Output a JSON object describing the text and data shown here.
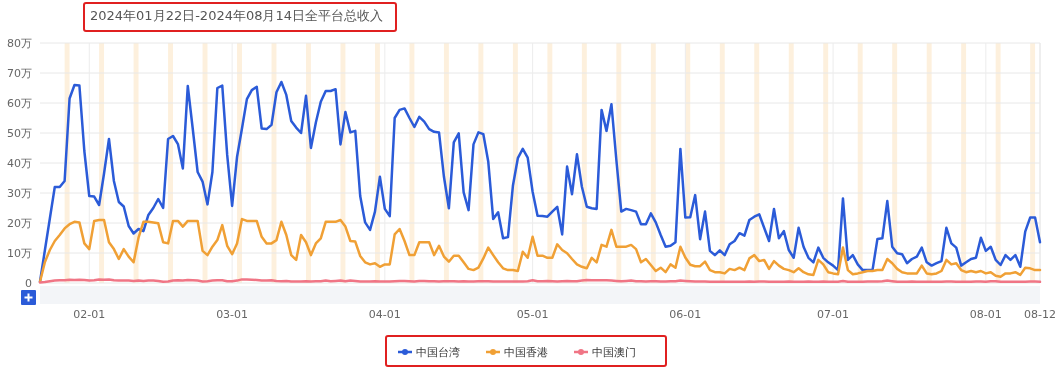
{
  "chart_data": {
    "type": "line",
    "title": "2024年01月22日-2024年08月14日全平台总收入",
    "x": [
      "2024-01-22",
      "2024-01-23",
      "2024-01-24",
      "2024-01-25",
      "2024-01-26",
      "2024-01-27",
      "2024-01-28",
      "2024-01-29",
      "2024-01-30",
      "2024-01-31",
      "2024-02-01",
      "2024-02-02",
      "2024-02-03",
      "2024-02-04",
      "2024-02-05",
      "2024-02-06",
      "2024-02-07",
      "2024-02-08",
      "2024-02-09",
      "2024-02-10",
      "2024-02-11",
      "2024-02-12",
      "2024-02-13",
      "2024-02-14",
      "2024-02-15",
      "2024-02-16",
      "2024-02-17",
      "2024-02-18",
      "2024-02-19",
      "2024-02-20",
      "2024-02-21",
      "2024-02-22",
      "2024-02-23",
      "2024-02-24",
      "2024-02-25",
      "2024-02-26",
      "2024-02-27",
      "2024-02-28",
      "2024-02-29",
      "2024-03-01",
      "2024-03-02",
      "2024-03-03",
      "2024-03-04",
      "2024-03-05",
      "2024-03-06",
      "2024-03-07",
      "2024-03-08",
      "2024-03-09",
      "2024-03-10",
      "2024-03-11",
      "2024-03-12",
      "2024-03-13",
      "2024-03-14",
      "2024-03-15",
      "2024-03-16",
      "2024-03-17",
      "2024-03-18",
      "2024-03-19",
      "2024-03-20",
      "2024-03-21",
      "2024-03-22",
      "2024-03-23",
      "2024-03-24",
      "2024-03-25",
      "2024-03-26",
      "2024-03-27",
      "2024-03-28",
      "2024-03-29",
      "2024-03-30",
      "2024-03-31",
      "2024-04-01",
      "2024-04-02",
      "2024-04-03",
      "2024-04-04",
      "2024-04-05",
      "2024-04-06",
      "2024-04-07",
      "2024-04-08",
      "2024-04-09",
      "2024-04-10",
      "2024-04-11",
      "2024-04-12",
      "2024-04-13",
      "2024-04-14",
      "2024-04-15",
      "2024-04-16",
      "2024-04-17",
      "2024-04-18",
      "2024-04-19",
      "2024-04-20",
      "2024-04-21",
      "2024-04-22",
      "2024-04-23",
      "2024-04-24",
      "2024-04-25",
      "2024-04-26",
      "2024-04-27",
      "2024-04-28",
      "2024-04-29",
      "2024-04-30",
      "2024-05-01",
      "2024-05-02",
      "2024-05-03",
      "2024-05-04",
      "2024-05-05",
      "2024-05-06",
      "2024-05-07",
      "2024-05-08",
      "2024-05-09",
      "2024-05-10",
      "2024-05-11",
      "2024-05-12",
      "2024-05-13",
      "2024-05-14",
      "2024-05-15",
      "2024-05-16",
      "2024-05-17",
      "2024-05-18",
      "2024-05-19",
      "2024-05-20",
      "2024-05-21",
      "2024-05-22",
      "2024-05-23",
      "2024-05-24",
      "2024-05-25",
      "2024-05-26",
      "2024-05-27",
      "2024-05-28",
      "2024-05-29",
      "2024-05-30",
      "2024-05-31",
      "2024-06-01",
      "2024-06-02",
      "2024-06-03",
      "2024-06-04",
      "2024-06-05",
      "2024-06-06",
      "2024-06-07",
      "2024-06-08",
      "2024-06-09",
      "2024-06-10",
      "2024-06-11",
      "2024-06-12",
      "2024-06-13",
      "2024-06-14",
      "2024-06-15",
      "2024-06-16",
      "2024-06-17",
      "2024-06-18",
      "2024-06-19",
      "2024-06-20",
      "2024-06-21",
      "2024-06-22",
      "2024-06-23",
      "2024-06-24",
      "2024-06-25",
      "2024-06-26",
      "2024-06-27",
      "2024-06-28",
      "2024-06-29",
      "2024-06-30",
      "2024-07-01",
      "2024-07-02",
      "2024-07-03",
      "2024-07-04",
      "2024-07-05",
      "2024-07-06",
      "2024-07-07",
      "2024-07-08",
      "2024-07-09",
      "2024-07-10",
      "2024-07-11",
      "2024-07-12",
      "2024-07-13",
      "2024-07-14",
      "2024-07-15",
      "2024-07-16",
      "2024-07-17",
      "2024-07-18",
      "2024-07-19",
      "2024-07-20",
      "2024-07-21",
      "2024-07-22",
      "2024-07-23",
      "2024-07-24",
      "2024-07-25",
      "2024-07-26",
      "2024-07-27",
      "2024-07-28",
      "2024-07-29",
      "2024-07-30",
      "2024-07-31",
      "2024-08-01",
      "2024-08-02",
      "2024-08-03",
      "2024-08-04",
      "2024-08-05",
      "2024-08-06",
      "2024-08-07",
      "2024-08-08",
      "2024-08-09",
      "2024-08-10",
      "2024-08-11",
      "2024-08-12"
    ],
    "series": [
      {
        "name": "中国台湾",
        "color": "#2b5bd8",
        "values": [
          0.4,
          11,
          21.5,
          32,
          32,
          34,
          61.5,
          66,
          65.8,
          44,
          29,
          28.8,
          26,
          36.5,
          48,
          34,
          27,
          25.5,
          19,
          16.5,
          18,
          17.3,
          22.7,
          25,
          28,
          25,
          48,
          49,
          46.3,
          38.2,
          65.7,
          51.5,
          37,
          33.8,
          26.2,
          37,
          65,
          65.8,
          42.7,
          25.7,
          42,
          51.5,
          61.3,
          64.3,
          65.4,
          51.5,
          51.3,
          52.7,
          63.6,
          67,
          62.7,
          54,
          51.8,
          50,
          62.4,
          45,
          53.5,
          60.4,
          64,
          64,
          64.6,
          46.2,
          57,
          50.2,
          50.7,
          29,
          20.2,
          17.7,
          23.8,
          35.4,
          24.7,
          22.3,
          55,
          57.7,
          58.2,
          55,
          52,
          55.4,
          53.8,
          51.3,
          50.4,
          50.2,
          35.4,
          24.9,
          46.9,
          49.9,
          30.2,
          24.3,
          46.2,
          50.2,
          49.6,
          40.4,
          21.3,
          23.6,
          14.9,
          15.3,
          32.4,
          41.6,
          44.7,
          41.8,
          30.4,
          22.4,
          22.3,
          22.1,
          23.8,
          25.4,
          16.2,
          38.8,
          29.6,
          42.9,
          32.1,
          25.4,
          24.9,
          24.7,
          57.7,
          50.7,
          59.6,
          41,
          23.8,
          24.7,
          24.3,
          23.8,
          19.6,
          19.6,
          23.2,
          20.2,
          16,
          12.1,
          12.4,
          13.6,
          44.7,
          21.8,
          21.9,
          29.3,
          14.6,
          23.8,
          10.7,
          9.3,
          10.9,
          9.3,
          12.9,
          14,
          16.6,
          15.8,
          21,
          22.1,
          22.9,
          18.4,
          14,
          24.7,
          14.9,
          17.3,
          11,
          8.4,
          18.4,
          12.1,
          8.4,
          6.9,
          11.8,
          8.4,
          6.9,
          5.8,
          4.3,
          28.2,
          7.7,
          9.3,
          6.2,
          4.3,
          4.3,
          4.3,
          14.7,
          14.9,
          27.3,
          12.1,
          9.9,
          9.6,
          6.6,
          8,
          8.8,
          11.8,
          6.9,
          5.8,
          6.6,
          7.3,
          18.4,
          13.2,
          11.8,
          5.8,
          6.9,
          8,
          8.4,
          15.1,
          10.7,
          12.1,
          7.7,
          6,
          9.3,
          7.7,
          9.3,
          5.4,
          17.1,
          21.8,
          21.8,
          13.6
        ]
      },
      {
        "name": "中国香港",
        "color": "#f0a035",
        "values": [
          0.4,
          7,
          11,
          14,
          16,
          18.2,
          19.6,
          20.4,
          20.2,
          13.2,
          11.3,
          20.7,
          21,
          21,
          13.6,
          11.3,
          8,
          11.3,
          8.8,
          6.9,
          15.1,
          20.4,
          20.4,
          20.2,
          19.9,
          13.6,
          13.2,
          20.7,
          20.7,
          18.8,
          20.7,
          20.7,
          20.7,
          10.7,
          9.3,
          12.1,
          14.3,
          19.3,
          12.4,
          9.6,
          13.2,
          21.3,
          20.7,
          20.7,
          20.7,
          15.4,
          13.2,
          13.2,
          14.3,
          20.4,
          16,
          9.3,
          7.7,
          16,
          13.6,
          9.3,
          13.2,
          14.9,
          20.4,
          20.4,
          20.4,
          21,
          18.8,
          14,
          13.8,
          9,
          6.9,
          6.2,
          6.6,
          5.4,
          6.2,
          6.2,
          16.2,
          18,
          14,
          9.3,
          9.3,
          13.6,
          13.6,
          13.6,
          9.3,
          12.4,
          8.8,
          7.1,
          9.1,
          9.1,
          6.9,
          4.7,
          4.3,
          5.1,
          8.2,
          11.8,
          9.3,
          6.9,
          4.9,
          4.3,
          4.3,
          4,
          10.4,
          8.4,
          15.4,
          9.1,
          9.1,
          8.4,
          8.4,
          12.9,
          11,
          9.9,
          8,
          6.2,
          5.4,
          4.9,
          8.4,
          6.9,
          12.7,
          12.1,
          17.7,
          12.1,
          12.1,
          12.1,
          12.7,
          11.3,
          6.9,
          8,
          6,
          4,
          5.1,
          3.6,
          6.2,
          5.1,
          12.1,
          8.5,
          6.1,
          5.6,
          5.6,
          7.1,
          4.3,
          3.6,
          3.6,
          3.2,
          4.7,
          4.3,
          5.1,
          4.3,
          8.2,
          9.3,
          7.3,
          7.7,
          4.7,
          7.3,
          5.8,
          4.7,
          4.3,
          3.6,
          4.9,
          3.6,
          2.9,
          2.7,
          7.7,
          6.2,
          3.6,
          3.2,
          2.9,
          11.8,
          4.3,
          2.9,
          3.2,
          3.6,
          4,
          4,
          4.3,
          4.3,
          8,
          6.6,
          4.7,
          3.6,
          3.2,
          3.2,
          3.2,
          5.8,
          3.2,
          2.9,
          3.2,
          4,
          7.7,
          6.2,
          6.6,
          4.3,
          3.6,
          4,
          3.6,
          4,
          3.2,
          3.6,
          2.4,
          2.1,
          3.2,
          3.2,
          3.6,
          2.7,
          5.1,
          4.9,
          4.3,
          4.3
        ]
      },
      {
        "name": "中国澳门",
        "color": "#f07585",
        "values": [
          0.2,
          0.3,
          0.6,
          0.8,
          0.9,
          0.9,
          1.1,
          1,
          1.1,
          1,
          0.8,
          0.9,
          1.2,
          1.1,
          1.2,
          0.9,
          0.8,
          0.8,
          0.8,
          0.7,
          0.8,
          0.7,
          0.8,
          0.8,
          0.7,
          0.4,
          0.5,
          0.8,
          0.9,
          0.8,
          1,
          0.9,
          0.8,
          0.5,
          0.6,
          0.8,
          0.9,
          0.9,
          0.6,
          0.6,
          0.8,
          1.2,
          1.2,
          1.1,
          1,
          0.8,
          0.8,
          0.9,
          0.7,
          0.6,
          0.7,
          0.5,
          0.5,
          0.5,
          0.6,
          0.5,
          0.6,
          0.6,
          0.8,
          0.6,
          0.7,
          0.8,
          0.6,
          0.8,
          0.7,
          0.5,
          0.5,
          0.5,
          0.6,
          0.5,
          0.5,
          0.5,
          0.6,
          0.7,
          0.7,
          0.6,
          0.5,
          0.7,
          0.7,
          0.6,
          0.6,
          0.5,
          0.6,
          0.6,
          0.6,
          0.5,
          0.6,
          0.5,
          0.5,
          0.6,
          0.6,
          0.6,
          0.5,
          0.5,
          0.5,
          0.5,
          0.5,
          0.5,
          0.5,
          0.6,
          0.9,
          0.6,
          0.6,
          0.7,
          0.6,
          0.5,
          0.6,
          0.7,
          0.6,
          0.6,
          0.8,
          1,
          0.9,
          0.9,
          0.9,
          0.9,
          0.8,
          0.7,
          0.6,
          0.7,
          0.8,
          0.6,
          0.6,
          0.5,
          0.6,
          0.6,
          0.5,
          0.5,
          0.6,
          0.6,
          0.8,
          0.7,
          0.6,
          0.5,
          0.5,
          0.5,
          0.4,
          0.4,
          0.4,
          0.4,
          0.4,
          0.4,
          0.4,
          0.4,
          0.5,
          0.4,
          0.5,
          0.5,
          0.4,
          0.4,
          0.4,
          0.4,
          0.5,
          0.4,
          0.4,
          0.4,
          0.5,
          0.4,
          0.4,
          0.5,
          0.4,
          0.4,
          0.4,
          0.7,
          0.4,
          0.4,
          0.4,
          0.4,
          0.5,
          0.5,
          0.5,
          0.6,
          0.8,
          0.6,
          0.4,
          0.4,
          0.4,
          0.5,
          0.4,
          0.4,
          0.4,
          0.4,
          0.4,
          0.4,
          0.5,
          0.5,
          0.4,
          0.4,
          0.4,
          0.4,
          0.5,
          0.5,
          0.4,
          0.6,
          0.6,
          0.4,
          0.4,
          0.4,
          0.4,
          0.4,
          0.4,
          0.5,
          0.5,
          0.4
        ]
      }
    ],
    "xlim": [
      "2024-01-22",
      "2024-08-12"
    ],
    "xticks": [
      {
        "value": "2024-02-01",
        "label": "02-01"
      },
      {
        "value": "2024-03-01",
        "label": "03-01"
      },
      {
        "value": "2024-04-01",
        "label": "04-01"
      },
      {
        "value": "2024-05-01",
        "label": "05-01"
      },
      {
        "value": "2024-06-01",
        "label": "06-01"
      },
      {
        "value": "2024-07-01",
        "label": "07-01"
      },
      {
        "value": "2024-08-01",
        "label": "08-01"
      },
      {
        "value": "2024-08-12",
        "label": "08-12"
      }
    ],
    "ylim": [
      0,
      80
    ],
    "yticks": [
      0,
      {
        "value": 10,
        "label": "10万"
      },
      {
        "value": 20,
        "label": "20万"
      },
      {
        "value": 30,
        "label": "30万"
      },
      {
        "value": 40,
        "label": "40万"
      },
      {
        "value": 50,
        "label": "50万"
      },
      {
        "value": 60,
        "label": "60万"
      },
      {
        "value": 70,
        "label": "70万"
      },
      {
        "value": 80,
        "label": "80万"
      }
    ],
    "bands": [
      {
        "axis": "x",
        "from": "2024-01-27",
        "to": "2024-01-28",
        "color": "#fdf0dd"
      },
      {
        "axis": "x",
        "from": "2024-02-03",
        "to": "2024-02-04",
        "color": "#fdf0dd"
      },
      {
        "axis": "x",
        "from": "2024-02-10",
        "to": "2024-02-11",
        "color": "#fdf0dd"
      },
      {
        "axis": "x",
        "from": "2024-02-17",
        "to": "2024-02-18",
        "color": "#fdf0dd"
      },
      {
        "axis": "x",
        "from": "2024-02-24",
        "to": "2024-02-25",
        "color": "#fdf0dd"
      },
      {
        "axis": "x",
        "from": "2024-03-02",
        "to": "2024-03-03",
        "color": "#fdf0dd"
      },
      {
        "axis": "x",
        "from": "2024-03-09",
        "to": "2024-03-10",
        "color": "#fdf0dd"
      },
      {
        "axis": "x",
        "from": "2024-03-16",
        "to": "2024-03-17",
        "color": "#fdf0dd"
      },
      {
        "axis": "x",
        "from": "2024-03-23",
        "to": "2024-03-24",
        "color": "#fdf0dd"
      },
      {
        "axis": "x",
        "from": "2024-03-30",
        "to": "2024-03-31",
        "color": "#fdf0dd"
      },
      {
        "axis": "x",
        "from": "2024-04-06",
        "to": "2024-04-07",
        "color": "#fdf0dd"
      },
      {
        "axis": "x",
        "from": "2024-04-13",
        "to": "2024-04-14",
        "color": "#fdf0dd"
      },
      {
        "axis": "x",
        "from": "2024-04-20",
        "to": "2024-04-21",
        "color": "#fdf0dd"
      },
      {
        "axis": "x",
        "from": "2024-04-27",
        "to": "2024-04-28",
        "color": "#fdf0dd"
      },
      {
        "axis": "x",
        "from": "2024-05-04",
        "to": "2024-05-05",
        "color": "#fdf0dd"
      },
      {
        "axis": "x",
        "from": "2024-05-11",
        "to": "2024-05-12",
        "color": "#fdf0dd"
      },
      {
        "axis": "x",
        "from": "2024-05-18",
        "to": "2024-05-19",
        "color": "#fdf0dd"
      },
      {
        "axis": "x",
        "from": "2024-05-25",
        "to": "2024-05-26",
        "color": "#fdf0dd"
      },
      {
        "axis": "x",
        "from": "2024-06-01",
        "to": "2024-06-02",
        "color": "#fdf0dd"
      },
      {
        "axis": "x",
        "from": "2024-06-08",
        "to": "2024-06-09",
        "color": "#fdf0dd"
      },
      {
        "axis": "x",
        "from": "2024-06-15",
        "to": "2024-06-16",
        "color": "#fdf0dd"
      },
      {
        "axis": "x",
        "from": "2024-06-22",
        "to": "2024-06-23",
        "color": "#fdf0dd"
      },
      {
        "axis": "x",
        "from": "2024-06-29",
        "to": "2024-06-30",
        "color": "#fdf0dd"
      },
      {
        "axis": "x",
        "from": "2024-07-06",
        "to": "2024-07-07",
        "color": "#fdf0dd"
      },
      {
        "axis": "x",
        "from": "2024-07-13",
        "to": "2024-07-14",
        "color": "#fdf0dd"
      },
      {
        "axis": "x",
        "from": "2024-07-20",
        "to": "2024-07-21",
        "color": "#fdf0dd"
      },
      {
        "axis": "x",
        "from": "2024-07-27",
        "to": "2024-07-28",
        "color": "#fdf0dd"
      },
      {
        "axis": "x",
        "from": "2024-08-03",
        "to": "2024-08-04",
        "color": "#fdf0dd"
      },
      {
        "axis": "x",
        "from": "2024-08-10",
        "to": "2024-08-11",
        "color": "#fdf0dd"
      }
    ],
    "grid": true,
    "legend": "bottom",
    "marker": "none",
    "line_style": "solid"
  }
}
